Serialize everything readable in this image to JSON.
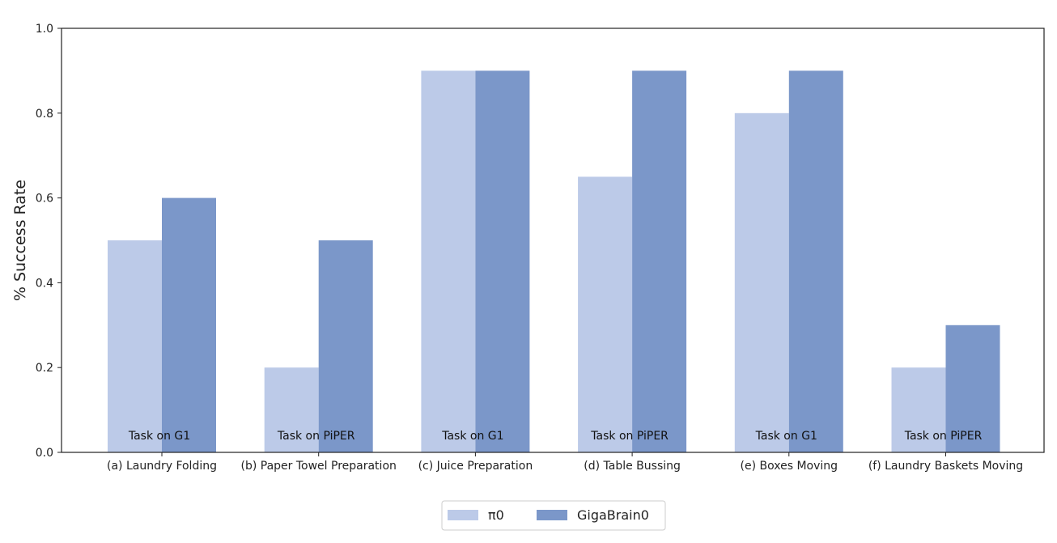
{
  "chart_data": {
    "type": "bar",
    "categories": [
      "(a) Laundry Folding",
      "(b) Paper Towel Preparation",
      "(c) Juice Preparation",
      "(d) Table Bussing",
      "(e) Boxes Moving",
      "(f) Laundry Baskets Moving"
    ],
    "series": [
      {
        "name": "π0",
        "color": "#bccae8",
        "values": [
          0.5,
          0.2,
          0.9,
          0.65,
          0.8,
          0.2
        ]
      },
      {
        "name": "GigaBrain0",
        "color": "#7b97c9",
        "values": [
          0.6,
          0.5,
          0.9,
          0.9,
          0.9,
          0.3
        ]
      }
    ],
    "annotations": [
      "Task on G1",
      "Task on PiPER",
      "Task on G1",
      "Task on PiPER",
      "Task on G1",
      "Task on PiPER"
    ],
    "title": "",
    "xlabel": "",
    "ylabel": "% Success Rate",
    "ylim": [
      0,
      1.0
    ],
    "yticks": [
      "0.0",
      "0.2",
      "0.4",
      "0.6",
      "0.8",
      "1.0"
    ],
    "grid": false,
    "legend_position": "bottom-center"
  }
}
